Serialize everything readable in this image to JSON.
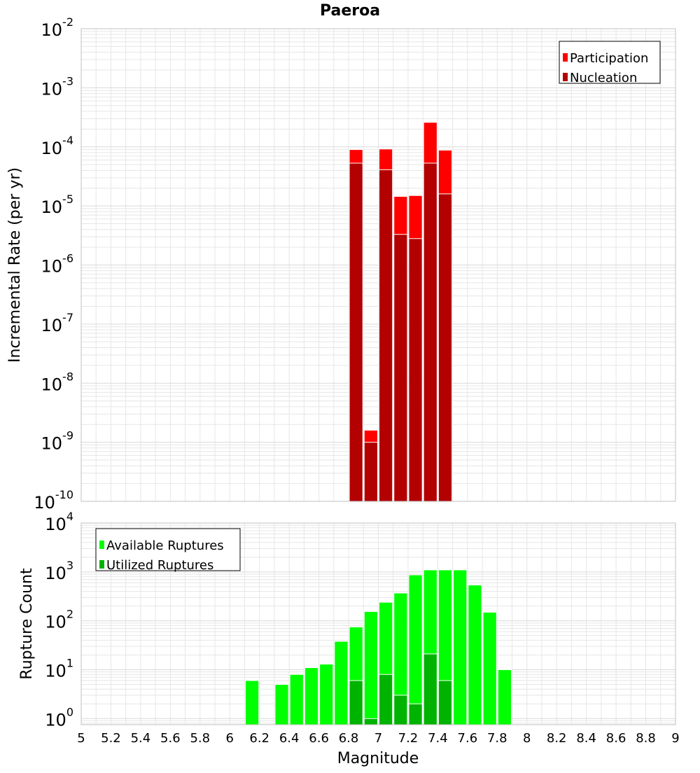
{
  "title": "Paeroa",
  "xlabel": "Magnitude",
  "colors": {
    "participation": "#ff0000",
    "nucleation": "#b30000",
    "available": "#00ff00",
    "utilized": "#00b300",
    "grid": "#e6e6e6",
    "frame": "#c0c0c0"
  },
  "chart_data": [
    {
      "type": "bar",
      "ylabel": "Incremental Rate (per yr)",
      "yscale": "log",
      "ylim": [
        1e-10,
        0.01
      ],
      "y_tick_exponents": [
        "-10",
        "-9",
        "-8",
        "-7",
        "-6",
        "-5",
        "-4",
        "-3",
        "-2"
      ],
      "xlim": [
        5,
        9
      ],
      "x": [
        6.85,
        6.95,
        7.05,
        7.15,
        7.25,
        7.35,
        7.45
      ],
      "bar_width": 0.1,
      "legend_position": "top-right",
      "series": [
        {
          "name": "Participation",
          "values": [
            9e-05,
            1.6e-09,
            9.2e-05,
            1.45e-05,
            1.5e-05,
            0.00026,
            8.8e-05
          ]
        },
        {
          "name": "Nucleation",
          "values": [
            5.3e-05,
            1e-09,
            4.1e-05,
            3.3e-06,
            2.8e-06,
            5.3e-05,
            1.6e-05
          ]
        }
      ]
    },
    {
      "type": "bar",
      "ylabel": "Rupture Count",
      "yscale": "log",
      "ylim": [
        0.75,
        10000
      ],
      "y_tick_exponents": [
        "0",
        "1",
        "2",
        "3",
        "4"
      ],
      "xlim": [
        5,
        9
      ],
      "x_ticks": [
        "5",
        "5.2",
        "5.4",
        "5.6",
        "5.8",
        "6",
        "6.2",
        "6.4",
        "6.6",
        "6.8",
        "7",
        "7.2",
        "7.4",
        "7.6",
        "7.8",
        "8",
        "8.2",
        "8.4",
        "8.6",
        "8.8",
        "9"
      ],
      "bar_width": 0.1,
      "legend_position": "top-left",
      "series": [
        {
          "name": "Available Ruptures",
          "x": [
            6.15,
            6.35,
            6.45,
            6.55,
            6.65,
            6.75,
            6.85,
            6.95,
            7.05,
            7.15,
            7.25,
            7.35,
            7.45,
            7.55,
            7.65,
            7.75,
            7.85
          ],
          "values": [
            6,
            5,
            8,
            11,
            13,
            38,
            75,
            155,
            240,
            370,
            870,
            1100,
            1100,
            1100,
            540,
            150,
            10
          ]
        },
        {
          "name": "Utilized Ruptures",
          "x": [
            6.85,
            6.95,
            7.05,
            7.15,
            7.25,
            7.35,
            7.45
          ],
          "values": [
            6,
            1,
            8,
            3,
            2,
            21,
            6
          ]
        }
      ]
    }
  ]
}
